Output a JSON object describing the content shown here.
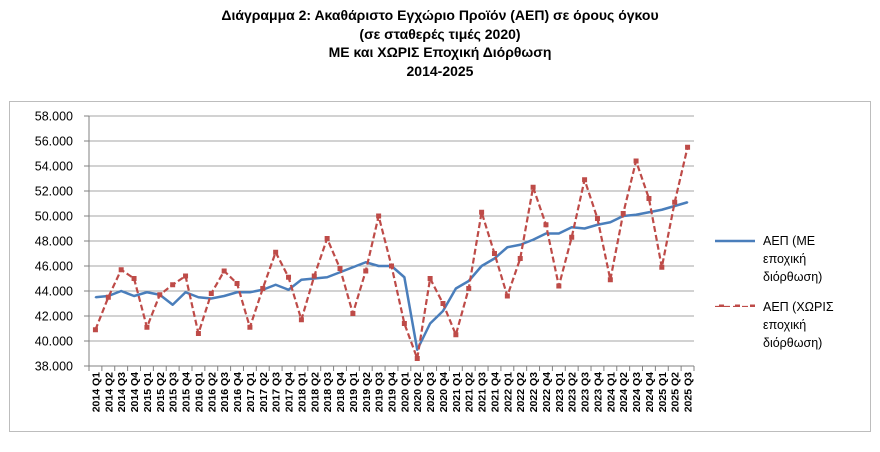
{
  "chart_data": {
    "type": "line",
    "title": "Διάγραμμα 2: Ακαθάριστο Εγχώριο Προϊόν (ΑΕΠ) σε όρους όγκου",
    "subtitle_lines": [
      "(σε σταθερές τιμές 2020)",
      "ΜΕ και ΧΩΡΙΣ Εποχική Διόρθωση",
      "2014-2025"
    ],
    "xlabel": "",
    "ylabel": "",
    "ylim": [
      38000,
      58000
    ],
    "y_ticks": [
      "38.000",
      "40.000",
      "42.000",
      "44.000",
      "46.000",
      "48.000",
      "50.000",
      "52.000",
      "54.000",
      "56.000",
      "58.000"
    ],
    "grid": true,
    "legend_position": "right",
    "categories": [
      "2014 Q1",
      "2014 Q2",
      "2014 Q3",
      "2014 Q4",
      "2015 Q1",
      "2015 Q2",
      "2015 Q3",
      "2015 Q4",
      "2016 Q1",
      "2016 Q2",
      "2016 Q3",
      "2016 Q4",
      "2017 Q1",
      "2017 Q2",
      "2017 Q3",
      "2017 Q4",
      "2018 Q1",
      "2018 Q2",
      "2018 Q3",
      "2018 Q4",
      "2019 Q1",
      "2019 Q2",
      "2019 Q3",
      "2019 Q4",
      "2020 Q1",
      "2020 Q2",
      "2020 Q3",
      "2020 Q4",
      "2021 Q1",
      "2021 Q2",
      "2021 Q3",
      "2021 Q4",
      "2022 Q1",
      "2022 Q2",
      "2022 Q3",
      "2022 Q4",
      "2023 Q1",
      "2023 Q2",
      "2023 Q3",
      "2023 Q4",
      "2024 Q1",
      "2024 Q2",
      "2024 Q3",
      "2024 Q4",
      "2025 Q1",
      "2025 Q2",
      "2025 Q3"
    ],
    "series": [
      {
        "name": "ΑΕΠ (ΜΕ εποχική διόρθωση)",
        "color": "#4a7ebb",
        "style": "solid",
        "values": [
          43500,
          43600,
          44000,
          43600,
          43900,
          43700,
          42900,
          43900,
          43500,
          43400,
          43600,
          43900,
          43900,
          44100,
          44500,
          44100,
          44900,
          45000,
          45100,
          45500,
          45900,
          46300,
          46000,
          46000,
          45100,
          39300,
          41400,
          42400,
          44200,
          44800,
          46000,
          46600,
          47500,
          47700,
          48100,
          48600,
          48600,
          49100,
          49000,
          49300,
          49500,
          50000,
          50100,
          50300,
          50500,
          50800,
          51100
        ]
      },
      {
        "name": "ΑΕΠ (ΧΩΡΙΣ εποχική διόρθωση)",
        "color": "#be4b48",
        "style": "dashed",
        "values": [
          40900,
          43500,
          45700,
          45000,
          41100,
          43700,
          44500,
          45200,
          40600,
          43800,
          45600,
          44600,
          41100,
          44200,
          47100,
          45100,
          41700,
          45200,
          48200,
          45800,
          42200,
          45600,
          50000,
          46000,
          41400,
          38600,
          45000,
          43000,
          40500,
          44200,
          50300,
          47000,
          43600,
          46600,
          52300,
          49300,
          44400,
          48300,
          52900,
          49800,
          44900,
          50200,
          54400,
          51400,
          45900,
          51100,
          55500
        ]
      }
    ]
  },
  "legend": [
    {
      "lines": [
        "ΑΕΠ (ΜΕ",
        "εποχική",
        "διόρθωση)"
      ]
    },
    {
      "lines": [
        "ΑΕΠ (ΧΩΡΙΣ",
        "εποχική",
        "διόρθωση)"
      ]
    }
  ]
}
